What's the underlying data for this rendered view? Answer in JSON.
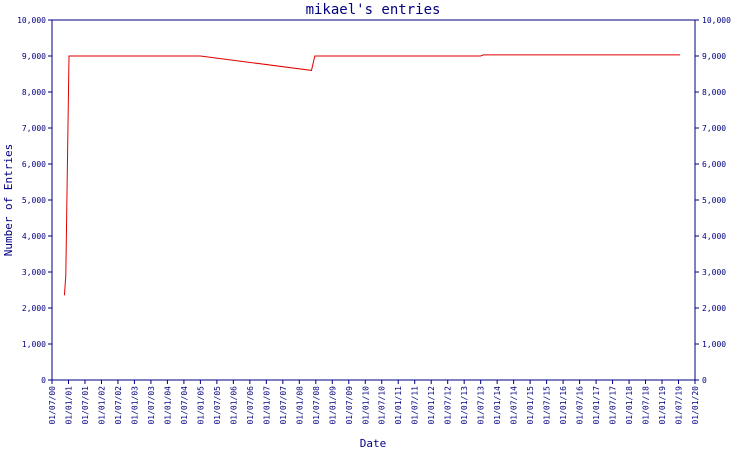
{
  "chart_data": {
    "type": "line",
    "title": "mikael's entries",
    "xlabel": "Date",
    "ylabel": "Number of Entries",
    "ylim": [
      0,
      10000
    ],
    "y_ticks": [
      0,
      1000,
      2000,
      3000,
      4000,
      5000,
      6000,
      7000,
      8000,
      9000,
      10000
    ],
    "y_tick_labels": [
      "0",
      "1,000",
      "2,000",
      "3,000",
      "4,000",
      "5,000",
      "6,000",
      "7,000",
      "8,000",
      "9,000",
      "10,000"
    ],
    "x_tick_labels": [
      "01/07/00",
      "01/01/01",
      "01/07/01",
      "01/01/02",
      "01/07/02",
      "01/01/03",
      "01/07/03",
      "01/01/04",
      "01/07/04",
      "01/01/05",
      "01/07/05",
      "01/01/06",
      "01/07/06",
      "01/01/07",
      "01/07/07",
      "01/01/08",
      "01/07/08",
      "01/01/09",
      "01/07/09",
      "01/01/10",
      "01/07/10",
      "01/01/11",
      "01/07/11",
      "01/01/12",
      "01/07/12",
      "01/01/13",
      "01/07/13",
      "01/01/14",
      "01/07/14",
      "01/01/15",
      "01/07/15",
      "01/01/16",
      "01/07/16",
      "01/01/17",
      "01/07/17",
      "01/01/18",
      "01/07/18",
      "01/01/19",
      "01/07/19",
      "01/01/20"
    ],
    "x_domain": [
      "2000-07-01",
      "2020-01-01"
    ],
    "series": [
      {
        "color": "#e00000",
        "points": [
          {
            "x": "2000-11-15",
            "y": 2350
          },
          {
            "x": "2000-12-01",
            "y": 2900
          },
          {
            "x": "2001-01-05",
            "y": 9000
          },
          {
            "x": "2005-01-01",
            "y": 9000
          },
          {
            "x": "2008-05-15",
            "y": 8600
          },
          {
            "x": "2008-06-20",
            "y": 9000
          },
          {
            "x": "2013-07-01",
            "y": 9000
          },
          {
            "x": "2013-08-01",
            "y": 9030
          },
          {
            "x": "2019-07-20",
            "y": 9030
          }
        ]
      }
    ],
    "grid": false
  }
}
